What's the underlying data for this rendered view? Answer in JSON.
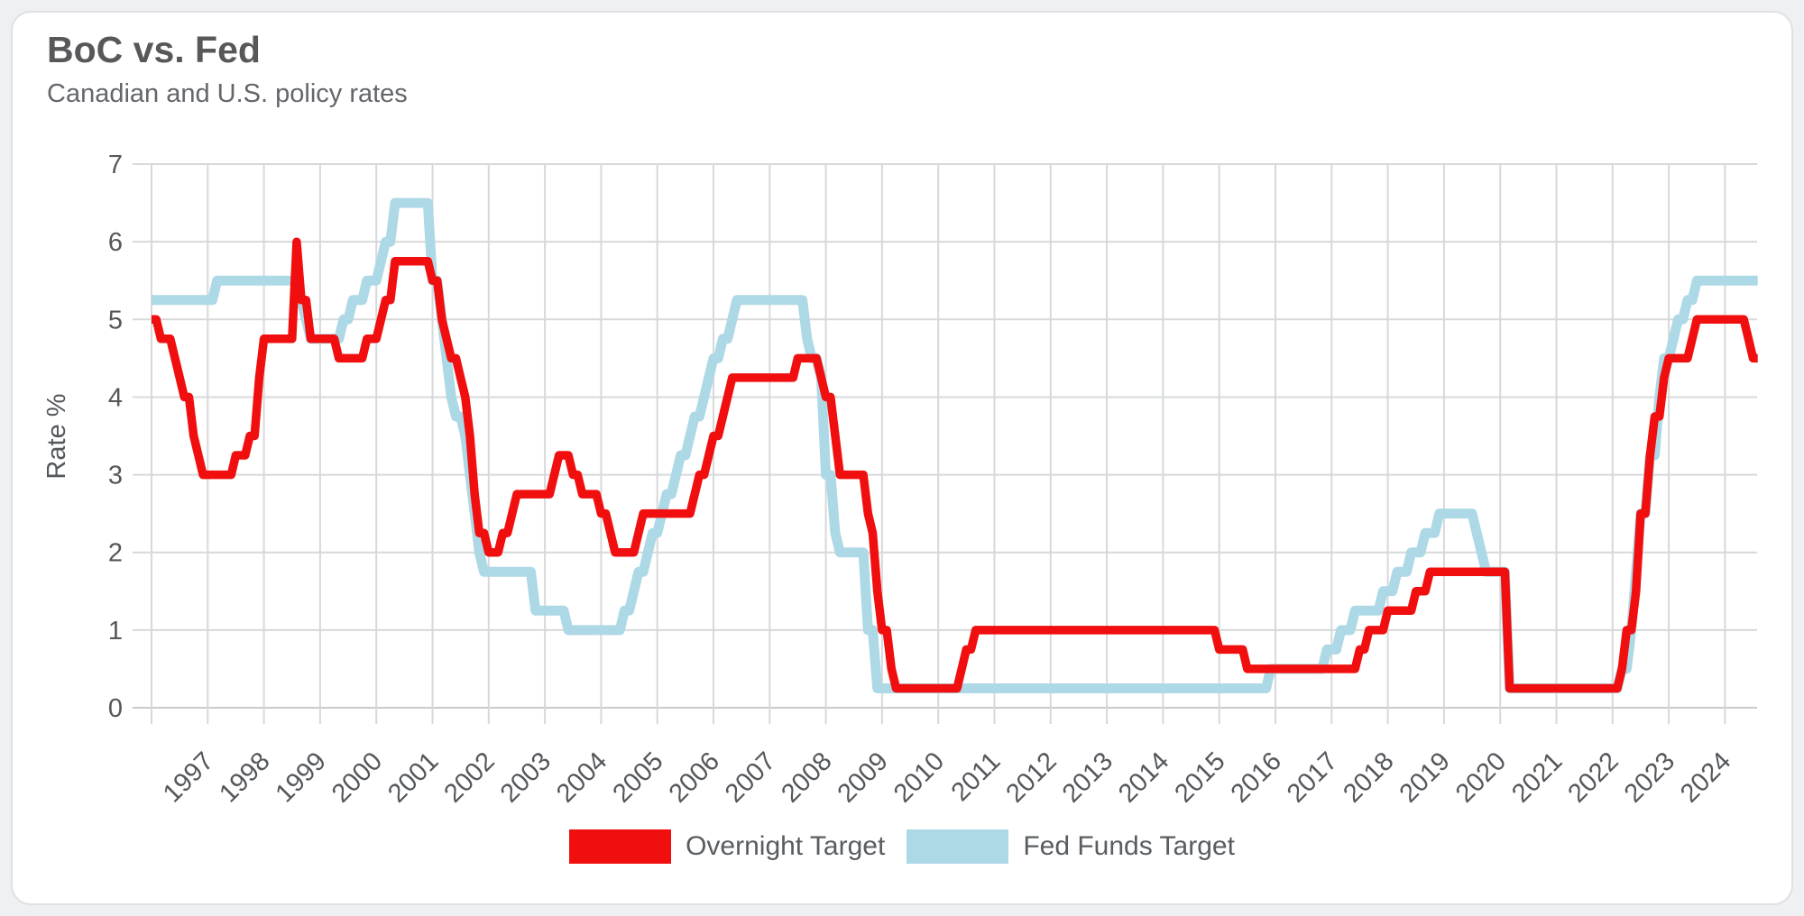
{
  "card": {
    "title": "BoC vs. Fed",
    "subtitle": "Canadian and U.S. policy rates"
  },
  "legend": {
    "items": [
      {
        "label": "Overnight Target",
        "color": "#f10e0e"
      },
      {
        "label": "Fed Funds Target",
        "color": "#add8e6"
      }
    ]
  },
  "chart_data": {
    "type": "line",
    "title": "BoC vs. Fed",
    "subtitle": "Canadian and U.S. policy rates",
    "xlabel": "",
    "ylabel": "Rate %",
    "ylim": [
      0,
      7
    ],
    "yticks": [
      0,
      1,
      2,
      3,
      4,
      5,
      6,
      7
    ],
    "xticks": [
      1997,
      1998,
      1999,
      2000,
      2001,
      2002,
      2003,
      2004,
      2005,
      2006,
      2007,
      2008,
      2009,
      2010,
      2011,
      2012,
      2013,
      2014,
      2015,
      2016,
      2017,
      2018,
      2019,
      2020,
      2021,
      2022,
      2023,
      2024
    ],
    "grid": true,
    "legend_position": "bottom",
    "x_start_month": "1996-01",
    "x_end_month": "2024-08",
    "sampling": "monthly-step",
    "series": [
      {
        "name": "Overnight Target",
        "color": "#f10e0e",
        "stroke_width": 9.5,
        "step_events": [
          [
            "1996-01",
            5.0
          ],
          [
            "1996-03",
            4.75
          ],
          [
            "1996-06",
            4.5
          ],
          [
            "1996-07",
            4.25
          ],
          [
            "1996-08",
            4.0
          ],
          [
            "1996-10",
            3.5
          ],
          [
            "1996-11",
            3.25
          ],
          [
            "1996-12",
            3.0
          ],
          [
            "1997-07",
            3.25
          ],
          [
            "1997-10",
            3.5
          ],
          [
            "1997-12",
            4.25
          ],
          [
            "1998-01",
            4.75
          ],
          [
            "1998-08",
            6.0
          ],
          [
            "1998-09",
            5.25
          ],
          [
            "1998-11",
            4.75
          ],
          [
            "1999-05",
            4.5
          ],
          [
            "1999-11",
            4.75
          ],
          [
            "2000-02",
            5.0
          ],
          [
            "2000-03",
            5.25
          ],
          [
            "2000-05",
            5.75
          ],
          [
            "2001-01",
            5.5
          ],
          [
            "2001-03",
            5.0
          ],
          [
            "2001-04",
            4.75
          ],
          [
            "2001-05",
            4.5
          ],
          [
            "2001-07",
            4.25
          ],
          [
            "2001-08",
            4.0
          ],
          [
            "2001-09",
            3.5
          ],
          [
            "2001-10",
            2.75
          ],
          [
            "2001-11",
            2.25
          ],
          [
            "2002-01",
            2.0
          ],
          [
            "2002-04",
            2.25
          ],
          [
            "2002-06",
            2.5
          ],
          [
            "2002-07",
            2.75
          ],
          [
            "2003-03",
            3.0
          ],
          [
            "2003-04",
            3.25
          ],
          [
            "2003-07",
            3.0
          ],
          [
            "2003-09",
            2.75
          ],
          [
            "2004-01",
            2.5
          ],
          [
            "2004-03",
            2.25
          ],
          [
            "2004-04",
            2.0
          ],
          [
            "2004-09",
            2.25
          ],
          [
            "2004-10",
            2.5
          ],
          [
            "2005-09",
            2.75
          ],
          [
            "2005-10",
            3.0
          ],
          [
            "2005-12",
            3.25
          ],
          [
            "2006-01",
            3.5
          ],
          [
            "2006-03",
            3.75
          ],
          [
            "2006-04",
            4.0
          ],
          [
            "2006-05",
            4.25
          ],
          [
            "2007-07",
            4.5
          ],
          [
            "2007-12",
            4.25
          ],
          [
            "2008-01",
            4.0
          ],
          [
            "2008-03",
            3.5
          ],
          [
            "2008-04",
            3.0
          ],
          [
            "2008-10",
            2.5
          ],
          [
            "2008-11",
            2.25
          ],
          [
            "2008-12",
            1.5
          ],
          [
            "2009-01",
            1.0
          ],
          [
            "2009-03",
            0.5
          ],
          [
            "2009-04",
            0.25
          ],
          [
            "2010-06",
            0.5
          ],
          [
            "2010-07",
            0.75
          ],
          [
            "2010-09",
            1.0
          ],
          [
            "2015-01",
            0.75
          ],
          [
            "2015-07",
            0.5
          ],
          [
            "2017-07",
            0.75
          ],
          [
            "2017-09",
            1.0
          ],
          [
            "2018-01",
            1.25
          ],
          [
            "2018-07",
            1.5
          ],
          [
            "2018-10",
            1.75
          ],
          [
            "2020-03",
            0.25
          ],
          [
            "2022-03",
            0.5
          ],
          [
            "2022-04",
            1.0
          ],
          [
            "2022-06",
            1.5
          ],
          [
            "2022-07",
            2.5
          ],
          [
            "2022-09",
            3.25
          ],
          [
            "2022-10",
            3.75
          ],
          [
            "2022-12",
            4.25
          ],
          [
            "2023-01",
            4.5
          ],
          [
            "2023-06",
            4.75
          ],
          [
            "2023-07",
            5.0
          ],
          [
            "2024-06",
            4.75
          ],
          [
            "2024-07",
            4.5
          ]
        ]
      },
      {
        "name": "Fed Funds Target",
        "color": "#add8e6",
        "stroke_width": 11,
        "step_events": [
          [
            "1996-01",
            5.25
          ],
          [
            "1997-03",
            5.5
          ],
          [
            "1998-09",
            5.25
          ],
          [
            "1998-10",
            5.0
          ],
          [
            "1998-11",
            4.75
          ],
          [
            "1999-06",
            5.0
          ],
          [
            "1999-08",
            5.25
          ],
          [
            "1999-11",
            5.5
          ],
          [
            "2000-02",
            5.75
          ],
          [
            "2000-03",
            6.0
          ],
          [
            "2000-05",
            6.5
          ],
          [
            "2001-01",
            5.5
          ],
          [
            "2001-03",
            5.0
          ],
          [
            "2001-04",
            4.5
          ],
          [
            "2001-05",
            4.0
          ],
          [
            "2001-06",
            3.75
          ],
          [
            "2001-08",
            3.5
          ],
          [
            "2001-09",
            3.0
          ],
          [
            "2001-10",
            2.5
          ],
          [
            "2001-11",
            2.0
          ],
          [
            "2001-12",
            1.75
          ],
          [
            "2002-11",
            1.25
          ],
          [
            "2003-06",
            1.0
          ],
          [
            "2004-06",
            1.25
          ],
          [
            "2004-08",
            1.5
          ],
          [
            "2004-09",
            1.75
          ],
          [
            "2004-11",
            2.0
          ],
          [
            "2004-12",
            2.25
          ],
          [
            "2005-02",
            2.5
          ],
          [
            "2005-03",
            2.75
          ],
          [
            "2005-05",
            3.0
          ],
          [
            "2005-06",
            3.25
          ],
          [
            "2005-08",
            3.5
          ],
          [
            "2005-09",
            3.75
          ],
          [
            "2005-11",
            4.0
          ],
          [
            "2005-12",
            4.25
          ],
          [
            "2006-01",
            4.5
          ],
          [
            "2006-03",
            4.75
          ],
          [
            "2006-05",
            5.0
          ],
          [
            "2006-06",
            5.25
          ],
          [
            "2007-09",
            4.75
          ],
          [
            "2007-10",
            4.5
          ],
          [
            "2007-12",
            4.25
          ],
          [
            "2008-01",
            3.0
          ],
          [
            "2008-03",
            2.25
          ],
          [
            "2008-04",
            2.0
          ],
          [
            "2008-10",
            1.0
          ],
          [
            "2008-12",
            0.25
          ],
          [
            "2015-12",
            0.5
          ],
          [
            "2016-12",
            0.75
          ],
          [
            "2017-03",
            1.0
          ],
          [
            "2017-06",
            1.25
          ],
          [
            "2017-12",
            1.5
          ],
          [
            "2018-03",
            1.75
          ],
          [
            "2018-06",
            2.0
          ],
          [
            "2018-09",
            2.25
          ],
          [
            "2018-12",
            2.5
          ],
          [
            "2019-08",
            2.25
          ],
          [
            "2019-09",
            2.0
          ],
          [
            "2019-10",
            1.75
          ],
          [
            "2020-03",
            0.25
          ],
          [
            "2022-03",
            0.5
          ],
          [
            "2022-05",
            1.0
          ],
          [
            "2022-06",
            1.75
          ],
          [
            "2022-07",
            2.5
          ],
          [
            "2022-09",
            3.25
          ],
          [
            "2022-11",
            4.0
          ],
          [
            "2022-12",
            4.5
          ],
          [
            "2023-02",
            4.75
          ],
          [
            "2023-03",
            5.0
          ],
          [
            "2023-05",
            5.25
          ],
          [
            "2023-07",
            5.5
          ]
        ]
      }
    ],
    "colors": {
      "gridline": "#d7d8da",
      "zero_line": "#c9cacc",
      "axis_text": "#54575b",
      "plot_background": "#ffffff"
    }
  }
}
